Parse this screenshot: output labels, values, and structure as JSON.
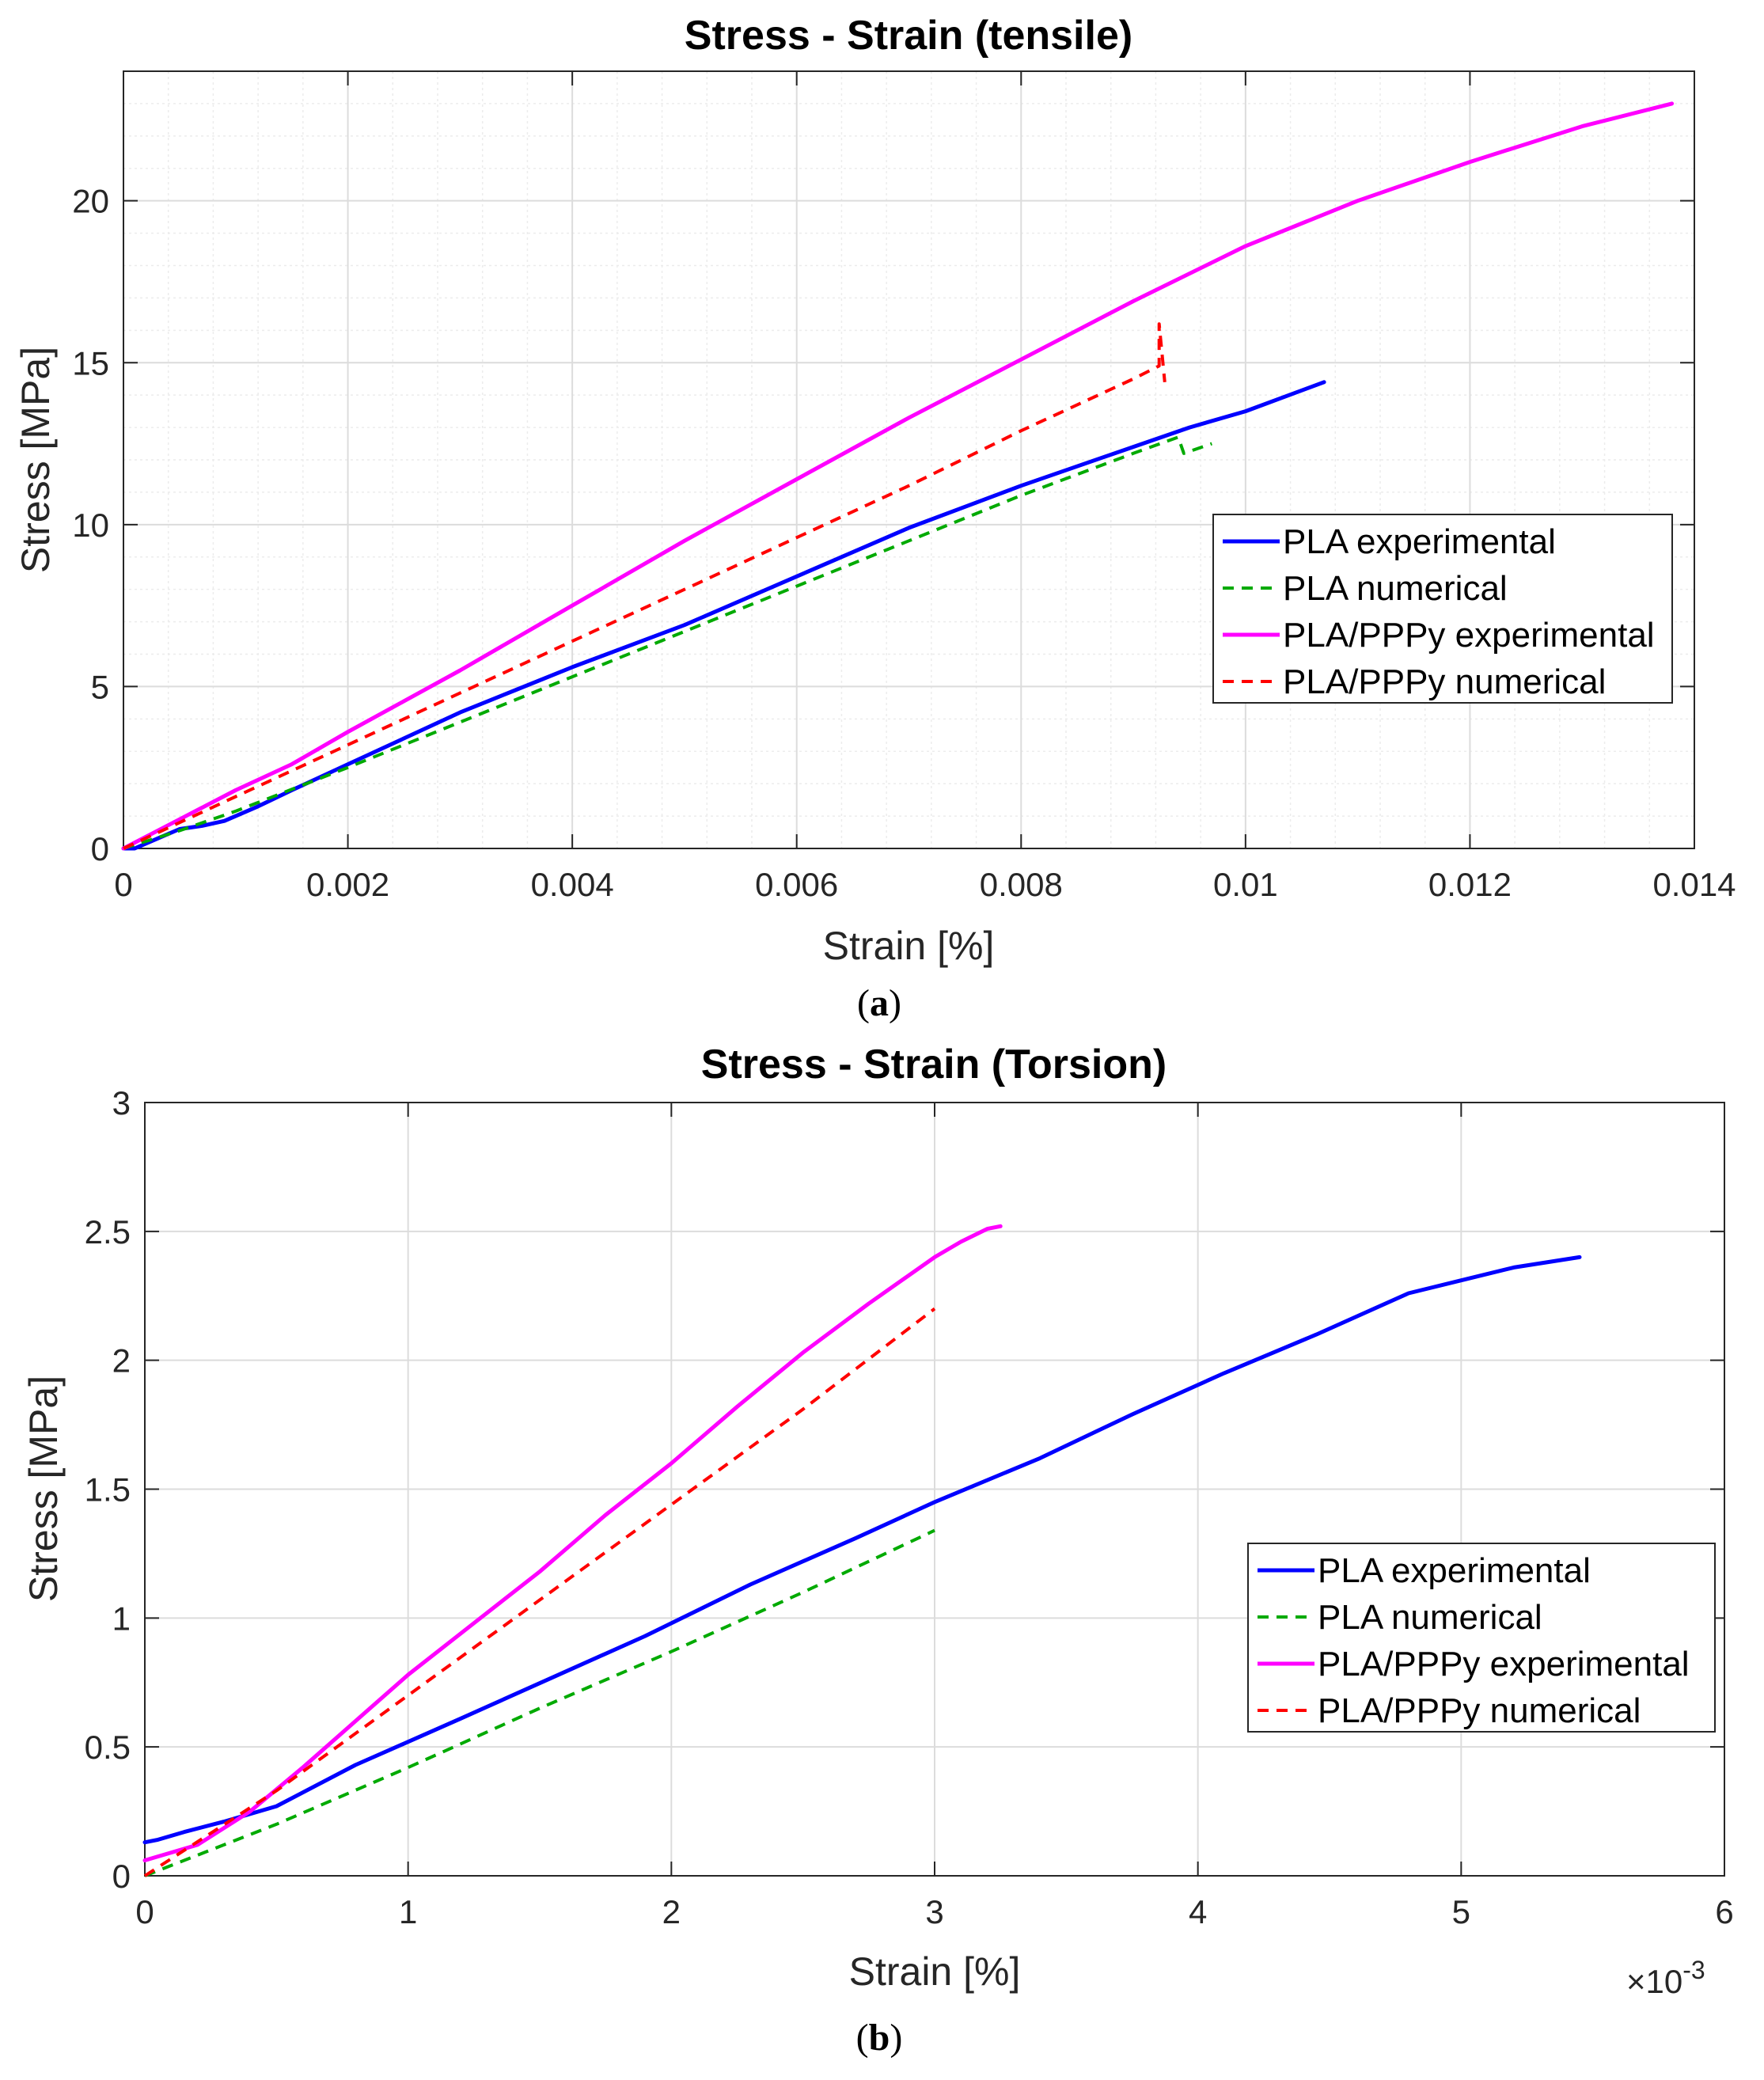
{
  "colors": {
    "pla_experimental": "#0000FF",
    "pla_numerical": "#00AA00",
    "plappy_experimental": "#FF00FF",
    "plappy_numerical": "#FF0000",
    "axis": "#262626",
    "grid": "#dcdcdc"
  },
  "captions": {
    "a_open": "(",
    "a_letter": "a",
    "a_close": ")",
    "b_open": "(",
    "b_letter": "b",
    "b_close": ")"
  },
  "chart_data": [
    {
      "type": "line",
      "title": "Stress - Strain (tensile)",
      "xlabel": "Strain [%]",
      "ylabel": "Stress [MPa]",
      "xlim": [
        0,
        0.014
      ],
      "ylim": [
        0,
        24
      ],
      "xticks": [
        0,
        0.002,
        0.004,
        0.006,
        0.008,
        0.01,
        0.012,
        0.014
      ],
      "xtick_labels": [
        "0",
        "0.002",
        "0.004",
        "0.006",
        "0.008",
        "0.01",
        "0.012",
        "0.014"
      ],
      "yticks": [
        0,
        5,
        10,
        15,
        20
      ],
      "ytick_labels": [
        "0",
        "5",
        "10",
        "15",
        "20"
      ],
      "grid": true,
      "minor_grid": true,
      "legend_position": "right-middle",
      "series": [
        {
          "name": "PLA experimental",
          "style": "solid",
          "color_key": "pla_experimental",
          "x": [
            0,
            0.0001,
            0.0003,
            0.0005,
            0.0007,
            0.0009,
            0.0012,
            0.0015,
            0.002,
            0.0025,
            0.003,
            0.0035,
            0.004,
            0.005,
            0.006,
            0.007,
            0.008,
            0.009,
            0.0095,
            0.01,
            0.0107
          ],
          "y": [
            0,
            0,
            0.3,
            0.6,
            0.7,
            0.85,
            1.3,
            1.8,
            2.6,
            3.4,
            4.2,
            4.9,
            5.6,
            6.9,
            8.4,
            9.9,
            11.2,
            12.4,
            13.0,
            13.5,
            14.4
          ]
        },
        {
          "name": "PLA numerical",
          "style": "dashed",
          "color_key": "pla_numerical",
          "x": [
            0,
            0.0005,
            0.001,
            0.002,
            0.003,
            0.004,
            0.005,
            0.006,
            0.007,
            0.008,
            0.009,
            0.0094,
            0.00945,
            0.0097
          ],
          "y": [
            0,
            0.55,
            1.15,
            2.5,
            3.9,
            5.3,
            6.7,
            8.1,
            9.5,
            10.9,
            12.2,
            12.7,
            12.2,
            12.5
          ]
        },
        {
          "name": "PLA/PPPy experimental",
          "style": "solid",
          "color_key": "plappy_experimental",
          "x": [
            0,
            0.0005,
            0.001,
            0.0015,
            0.002,
            0.003,
            0.004,
            0.005,
            0.006,
            0.007,
            0.008,
            0.009,
            0.01,
            0.011,
            0.012,
            0.013,
            0.0138
          ],
          "y": [
            0,
            0.9,
            1.8,
            2.6,
            3.6,
            5.5,
            7.5,
            9.5,
            11.4,
            13.3,
            15.1,
            16.9,
            18.6,
            20.0,
            21.2,
            22.3,
            23.0
          ]
        },
        {
          "name": "PLA/PPPy numerical",
          "style": "dashed",
          "color_key": "plappy_numerical",
          "x": [
            0,
            0.0005,
            0.001,
            0.002,
            0.003,
            0.004,
            0.005,
            0.006,
            0.007,
            0.008,
            0.009,
            0.00923,
            0.00923,
            0.00928
          ],
          "y": [
            0,
            0.8,
            1.6,
            3.2,
            4.8,
            6.4,
            8.0,
            9.6,
            11.2,
            12.9,
            14.5,
            14.9,
            16.2,
            14.4
          ]
        }
      ]
    },
    {
      "type": "line",
      "title": "Stress - Strain (Torsion)",
      "xlabel": "Strain [%]",
      "ylabel": "Stress [MPa]",
      "x_exponent_label": "×10",
      "x_exponent_power": "-3",
      "xlim": [
        0,
        6
      ],
      "ylim": [
        0,
        3
      ],
      "xticks": [
        0,
        1,
        2,
        3,
        4,
        5,
        6
      ],
      "xtick_labels": [
        "0",
        "1",
        "2",
        "3",
        "4",
        "5",
        "6"
      ],
      "yticks": [
        0,
        0.5,
        1,
        1.5,
        2,
        2.5,
        3
      ],
      "ytick_labels": [
        "0",
        "0.5",
        "1",
        "1.5",
        "2",
        "2.5",
        "3"
      ],
      "grid": true,
      "minor_grid": false,
      "legend_position": "right-middle",
      "series": [
        {
          "name": "PLA experimental",
          "style": "solid",
          "color_key": "pla_experimental",
          "x": [
            0,
            0.05,
            0.15,
            0.3,
            0.5,
            0.8,
            1.0,
            1.2,
            1.55,
            1.9,
            2.3,
            2.7,
            3.0,
            3.4,
            3.75,
            4.1,
            4.45,
            4.8,
            5.0,
            5.2,
            5.45
          ],
          "y": [
            0.13,
            0.14,
            0.17,
            0.21,
            0.27,
            0.43,
            0.52,
            0.61,
            0.77,
            0.93,
            1.13,
            1.31,
            1.45,
            1.62,
            1.79,
            1.95,
            2.1,
            2.26,
            2.31,
            2.36,
            2.4
          ]
        },
        {
          "name": "PLA numerical",
          "style": "dashed",
          "color_key": "pla_numerical",
          "x": [
            0,
            0.5,
            1.0,
            1.5,
            2.0,
            2.5,
            3.0
          ],
          "y": [
            0,
            0.2,
            0.42,
            0.65,
            0.87,
            1.1,
            1.34
          ]
        },
        {
          "name": "PLA/PPPy experimental",
          "style": "solid",
          "color_key": "plappy_experimental",
          "x": [
            0,
            0.2,
            0.4,
            0.6,
            0.8,
            1.0,
            1.25,
            1.5,
            1.75,
            2.0,
            2.25,
            2.5,
            2.75,
            3.0,
            3.1,
            3.2,
            3.25
          ],
          "y": [
            0.06,
            0.12,
            0.25,
            0.42,
            0.6,
            0.78,
            0.98,
            1.18,
            1.4,
            1.6,
            1.82,
            2.03,
            2.22,
            2.4,
            2.46,
            2.51,
            2.52
          ]
        },
        {
          "name": "PLA/PPPy numerical",
          "style": "dashed",
          "color_key": "plappy_numerical",
          "x": [
            0,
            0.5,
            1.0,
            1.5,
            2.0,
            2.5,
            3.0
          ],
          "y": [
            0,
            0.33,
            0.7,
            1.07,
            1.44,
            1.81,
            2.2
          ]
        }
      ]
    }
  ]
}
